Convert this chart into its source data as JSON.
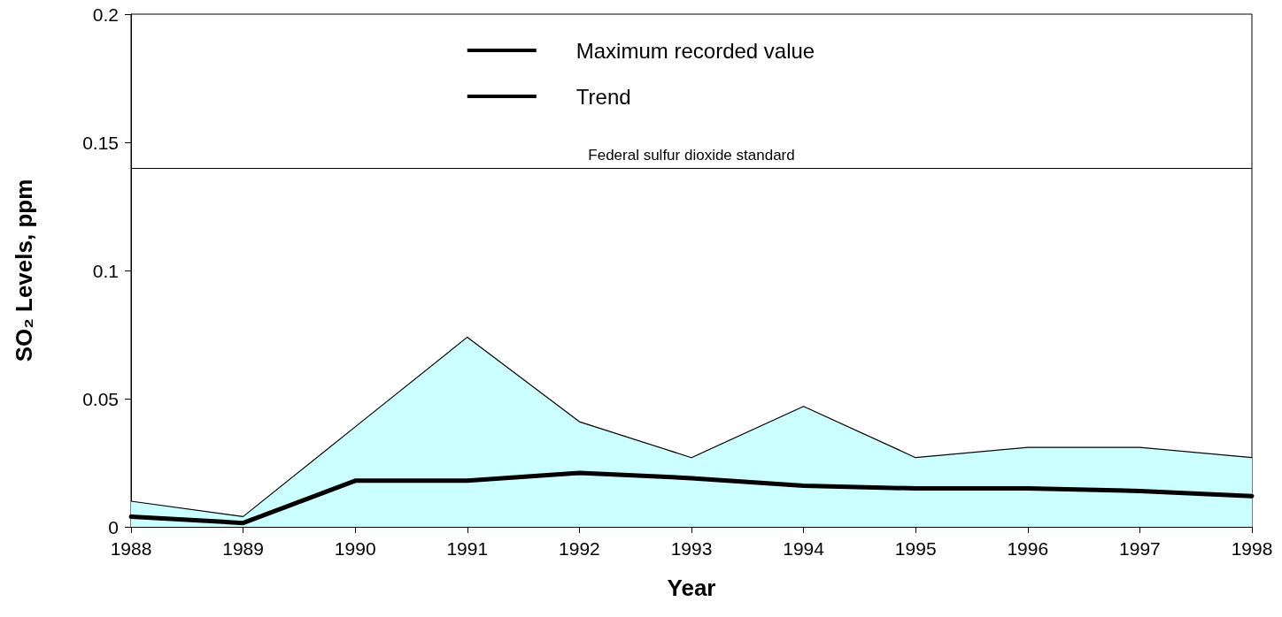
{
  "chart_data": {
    "type": "area",
    "xlabel": "Year",
    "ylabel": "SO₂ Levels, ppm",
    "x": [
      1988,
      1989,
      1990,
      1991,
      1992,
      1993,
      1994,
      1995,
      1996,
      1997,
      1998
    ],
    "series": [
      {
        "name": "Maximum recorded value",
        "color": "#ccffff",
        "values": [
          0.01,
          0.004,
          0.039,
          0.074,
          0.041,
          0.027,
          0.047,
          0.027,
          0.031,
          0.031,
          0.027
        ]
      },
      {
        "name": "Trend",
        "type": "line",
        "color": "#000000",
        "values": [
          0.004,
          0.0015,
          0.018,
          0.018,
          0.021,
          0.019,
          0.016,
          0.015,
          0.015,
          0.014,
          0.012
        ]
      }
    ],
    "xlim": [
      1988,
      1998
    ],
    "xticks": [
      1988,
      1989,
      1990,
      1991,
      1992,
      1993,
      1994,
      1995,
      1996,
      1997,
      1998
    ],
    "ylim": [
      0,
      0.2
    ],
    "yticks": [
      0,
      0.05,
      0.1,
      0.15,
      0.2
    ],
    "ref_lines": [
      {
        "axis": "y",
        "value": 0.14,
        "label": "Federal sulfur dioxide standard",
        "color": "#000000"
      }
    ],
    "grid": false,
    "legend": "top",
    "marker": "none"
  }
}
